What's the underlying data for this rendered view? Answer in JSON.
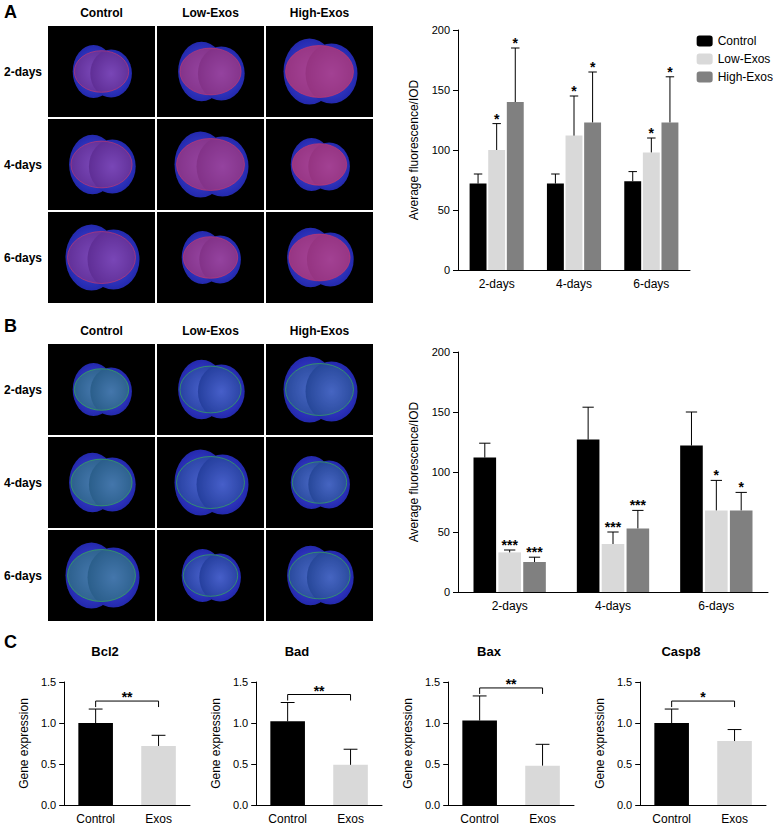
{
  "panel_labels": [
    "A",
    "B",
    "C"
  ],
  "image_panels": [
    {
      "columns": [
        "Control",
        "Low-Exos",
        "High-Exos"
      ],
      "rows": [
        "2-days",
        "4-days",
        "6-days"
      ]
    },
    {
      "columns": [
        "Control",
        "Low-Exos",
        "High-Exos"
      ],
      "rows": [
        "2-days",
        "4-days",
        "6-days"
      ]
    }
  ],
  "chart_data": [
    {
      "type": "bar",
      "categories": [
        "2-days",
        "4-days",
        "6-days"
      ],
      "ylabel": "Average fluorescence/IOD",
      "ylim": [
        0,
        200
      ],
      "yticks": [
        0,
        50,
        100,
        150,
        200
      ],
      "grid": false,
      "legend": "top-right",
      "series": [
        {
          "name": "Control",
          "color": "#000000",
          "values": [
            72,
            72,
            74
          ],
          "errors": [
            8,
            8,
            8
          ]
        },
        {
          "name": "Low-Exos",
          "color": "#d9d9d9",
          "values": [
            100,
            112,
            98
          ],
          "errors": [
            22,
            33,
            12
          ],
          "annotations": [
            "*",
            "*",
            "*"
          ]
        },
        {
          "name": "High-Exos",
          "color": "#808080",
          "values": [
            140,
            123,
            123
          ],
          "errors": [
            45,
            42,
            38
          ],
          "annotations": [
            "*",
            "*",
            "*"
          ]
        }
      ]
    },
    {
      "type": "bar",
      "categories": [
        "2-days",
        "4-days",
        "6-days"
      ],
      "ylabel": "Average fluorescence/IOD",
      "ylim": [
        0,
        200
      ],
      "yticks": [
        0,
        50,
        100,
        150,
        200
      ],
      "grid": false,
      "series": [
        {
          "name": "Control",
          "color": "#000000",
          "values": [
            112,
            127,
            122
          ],
          "errors": [
            12,
            27,
            28
          ]
        },
        {
          "name": "Low-Exos",
          "color": "#d9d9d9",
          "values": [
            33,
            40,
            68
          ],
          "errors": [
            2,
            10,
            25
          ],
          "annotations": [
            "***",
            "***",
            "*"
          ]
        },
        {
          "name": "High-Exos",
          "color": "#808080",
          "values": [
            25,
            53,
            68
          ],
          "errors": [
            4,
            15,
            15
          ],
          "annotations": [
            "***",
            "***",
            "*"
          ]
        }
      ]
    },
    {
      "type": "bar",
      "title": "Bcl2",
      "categories": [
        "Control",
        "Exos"
      ],
      "values": [
        1.0,
        0.72
      ],
      "errors": [
        0.17,
        0.13
      ],
      "colors": [
        "#000000",
        "#d9d9d9"
      ],
      "ylabel": "Gene expression",
      "ylim": [
        0,
        1.5
      ],
      "yticks": [
        {
          "value": 0,
          "label": "0.0"
        },
        0.5,
        {
          "value": 1,
          "label": "1.0"
        },
        1.5
      ],
      "grid": false,
      "annotations": [
        {
          "from": "Control",
          "to": "Exos",
          "text": "**"
        }
      ]
    },
    {
      "type": "bar",
      "title": "Bad",
      "categories": [
        "Control",
        "Exos"
      ],
      "values": [
        1.02,
        0.49
      ],
      "errors": [
        0.23,
        0.19
      ],
      "colors": [
        "#000000",
        "#d9d9d9"
      ],
      "ylabel": "Gene expression",
      "ylim": [
        0,
        1.5
      ],
      "yticks": [
        {
          "value": 0,
          "label": "0.0"
        },
        0.5,
        {
          "value": 1,
          "label": "1.0"
        },
        1.5
      ],
      "grid": false,
      "annotations": [
        {
          "from": "Control",
          "to": "Exos",
          "text": "**"
        }
      ]
    },
    {
      "type": "bar",
      "title": "Bax",
      "categories": [
        "Control",
        "Exos"
      ],
      "values": [
        1.03,
        0.48
      ],
      "errors": [
        0.3,
        0.26
      ],
      "colors": [
        "#000000",
        "#d9d9d9"
      ],
      "ylabel": "Gene expression",
      "ylim": [
        0,
        1.5
      ],
      "yticks": [
        {
          "value": 0,
          "label": "0.0"
        },
        0.5,
        {
          "value": 1,
          "label": "1.0"
        },
        1.5
      ],
      "grid": false,
      "annotations": [
        {
          "from": "Control",
          "to": "Exos",
          "text": "**"
        }
      ]
    },
    {
      "type": "bar",
      "title": "Casp8",
      "categories": [
        "Control",
        "Exos"
      ],
      "values": [
        1.0,
        0.78
      ],
      "errors": [
        0.17,
        0.14
      ],
      "colors": [
        "#000000",
        "#d9d9d9"
      ],
      "ylabel": "Gene expression",
      "ylim": [
        0,
        1.5
      ],
      "yticks": [
        {
          "value": 0,
          "label": "0.0"
        },
        0.5,
        {
          "value": 1,
          "label": "1.0"
        },
        1.5
      ],
      "grid": false,
      "annotations": [
        {
          "from": "Control",
          "to": "Exos",
          "text": "*"
        }
      ]
    }
  ]
}
